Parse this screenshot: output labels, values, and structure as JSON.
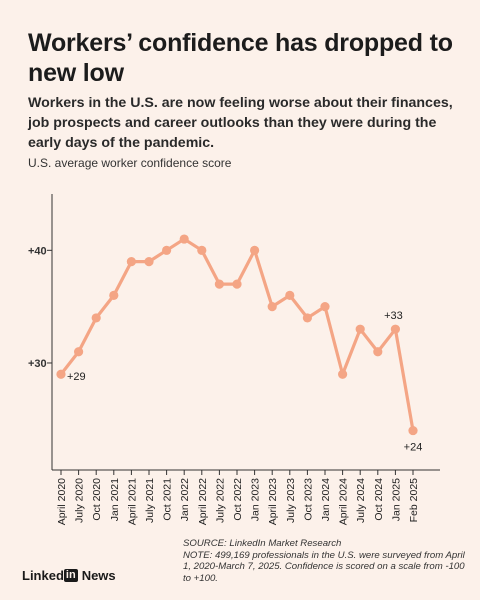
{
  "title": "Workers’ confidence has dropped to new low",
  "subtitle": "Workers in the U.S. are now feeling worse about their finances, job prospects and career outlooks than they were during the early days of the pandemic.",
  "chart_label": "U.S. average worker confidence score",
  "source": "SOURCE: LinkedIn Market Research",
  "note": "NOTE: 499,169 professionals in the U.S. were surveyed from April 1, 2020-March 7, 2025. Confidence is scored on a scale from -100 to +100.",
  "brand": {
    "linked": "Linked",
    "in": "in",
    "news": "News"
  },
  "colors": {
    "line": "#f4a585",
    "axis": "#333333",
    "background": "#fcf1ea"
  },
  "chart_data": {
    "type": "line",
    "x": [
      "April 2020",
      "July 2020",
      "Oct 2020",
      "Jan 2021",
      "April 2021",
      "July 2021",
      "Oct 2021",
      "Jan 2022",
      "April 2022",
      "July 2022",
      "Oct 2022",
      "Jan 2023",
      "April 2023",
      "July 2023",
      "Oct 2023",
      "Jan 2024",
      "April 2024",
      "July 2024",
      "Oct 2024",
      "Jan 2025",
      "Feb 2025"
    ],
    "values": [
      29,
      31,
      34,
      36,
      39,
      39,
      40,
      41,
      40,
      37,
      37,
      40,
      35,
      36,
      34,
      35,
      29,
      33,
      31,
      33,
      24
    ],
    "y_ticks": [
      30,
      40
    ],
    "y_tick_labels": [
      "+30",
      "+40"
    ],
    "annotations": [
      {
        "index": 0,
        "label": "+29"
      },
      {
        "index": 19,
        "label": "+33"
      },
      {
        "index": 20,
        "label": "+24"
      }
    ],
    "xlabel": "",
    "ylabel": "",
    "ylim": [
      20.5,
      45
    ],
    "grid": false
  }
}
